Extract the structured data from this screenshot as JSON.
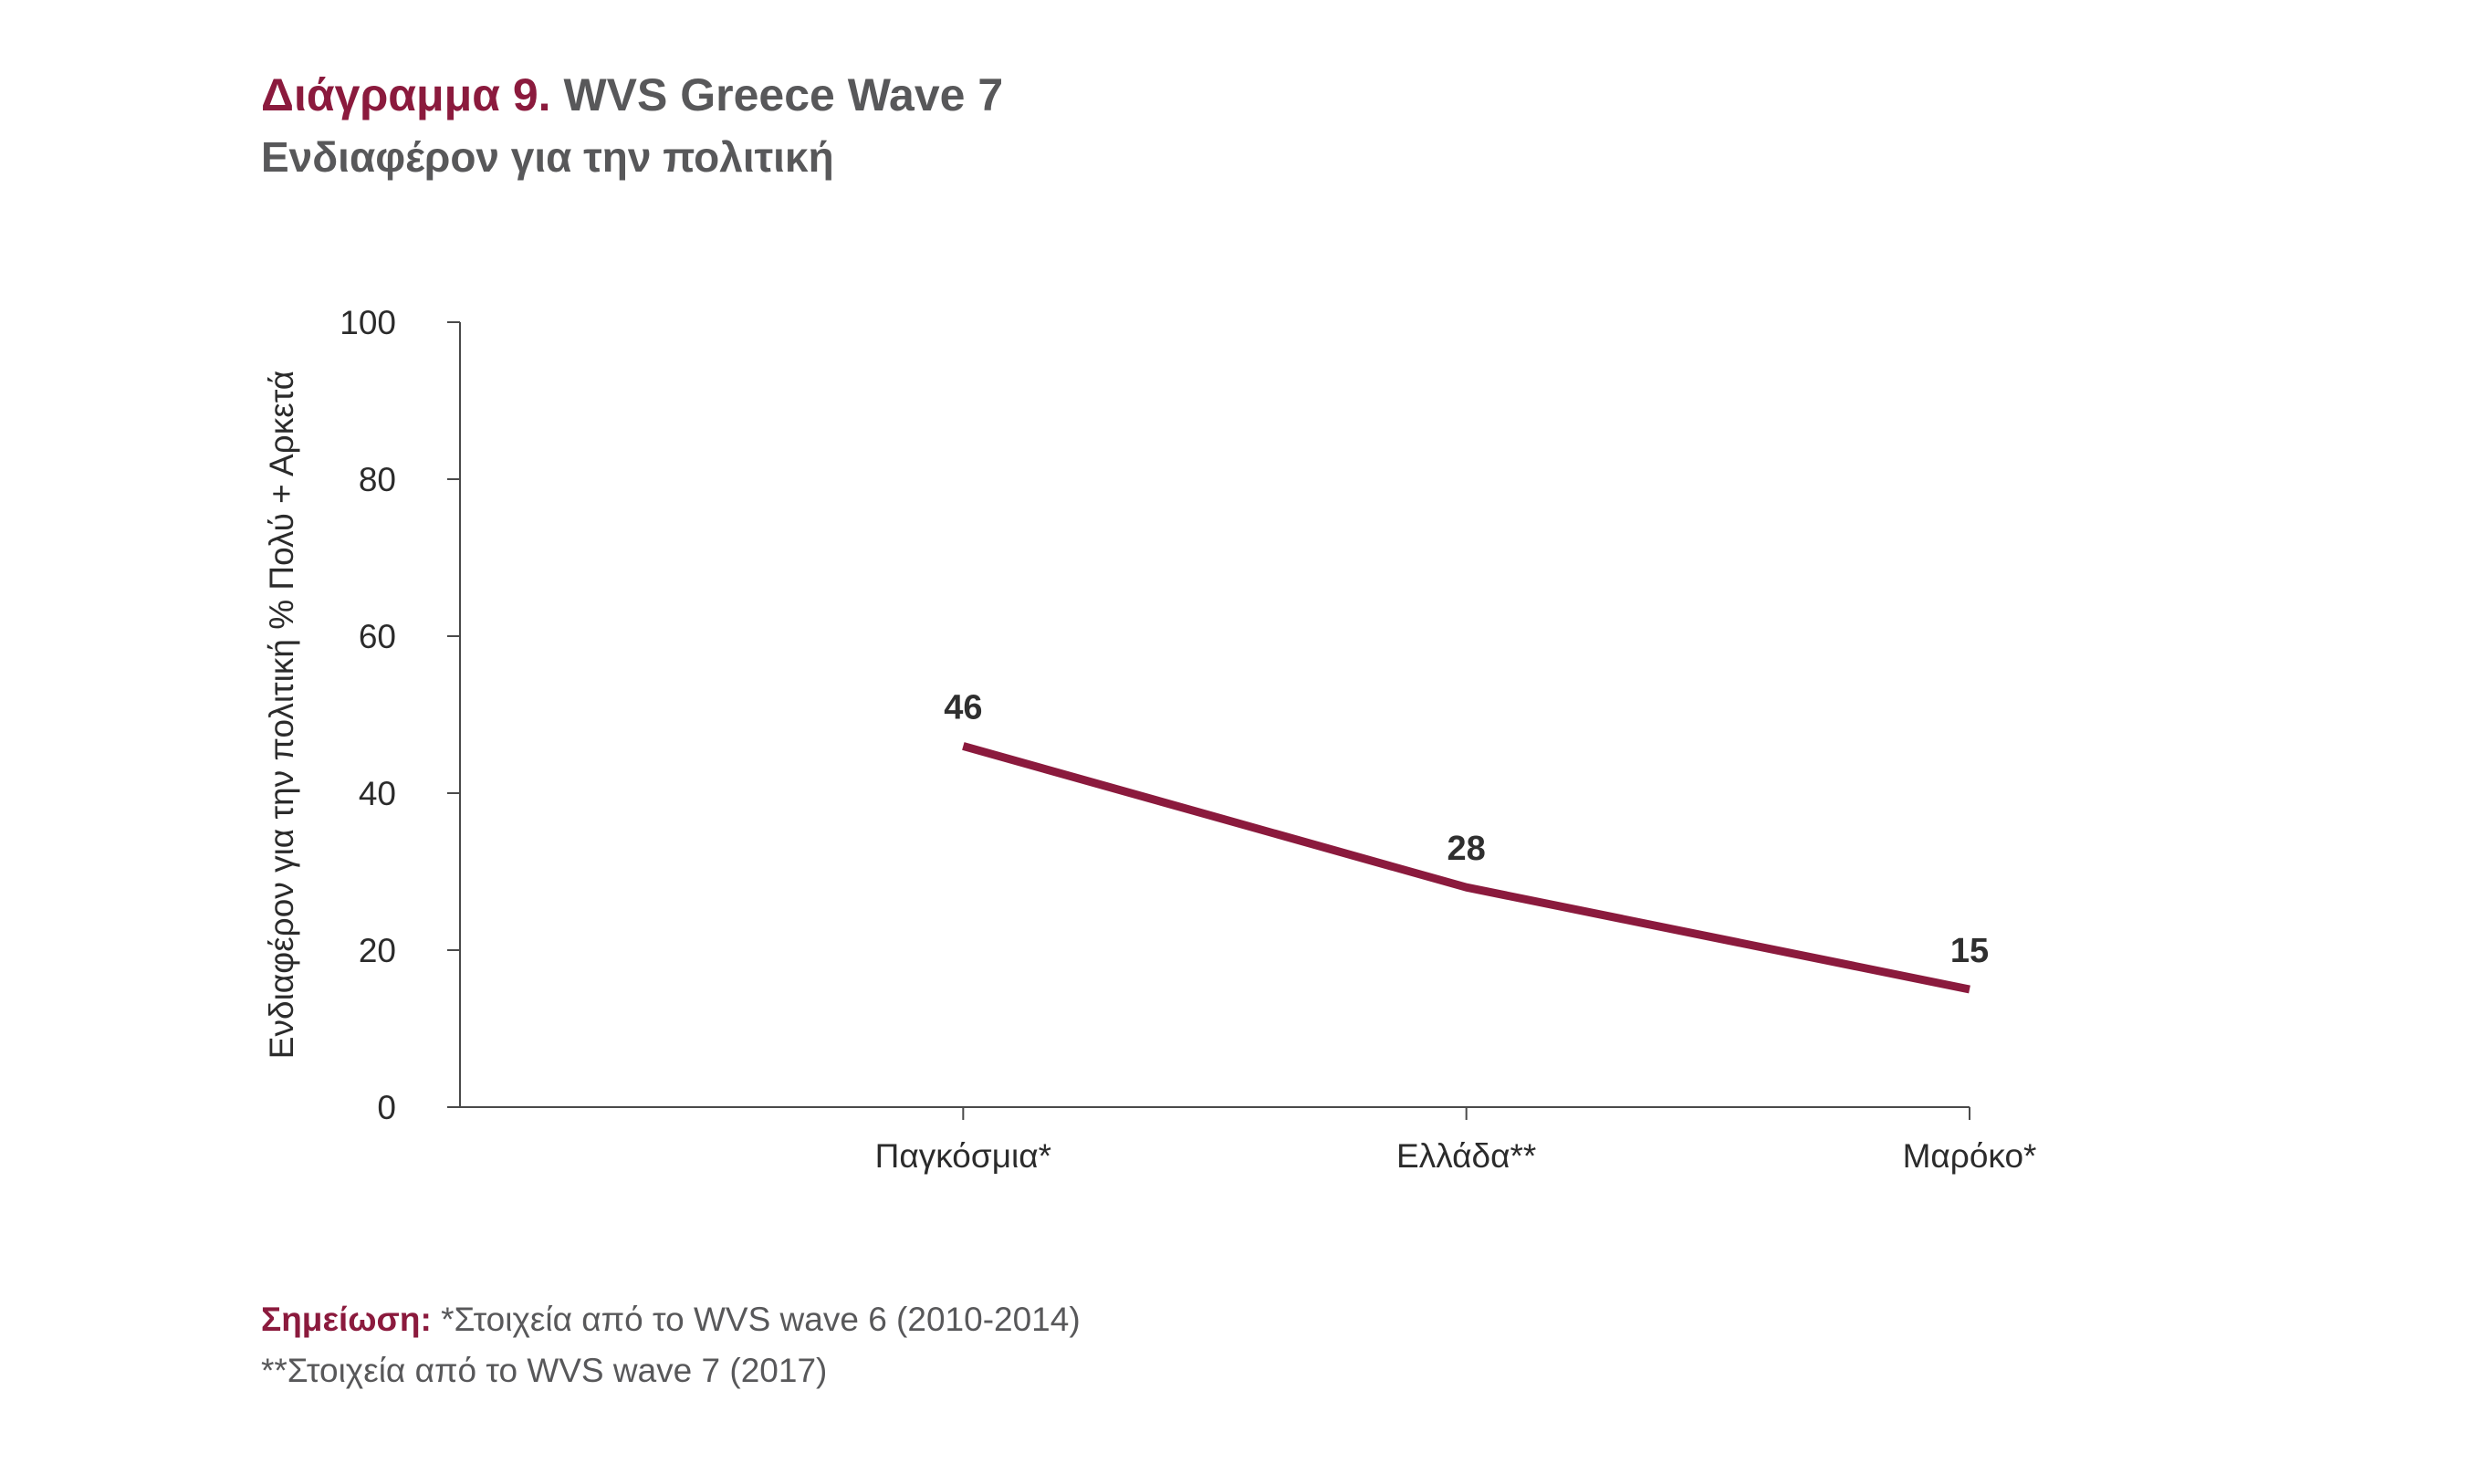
{
  "header": {
    "title_prefix": "Διάγραμμα 9.",
    "title_main": "WVS Greece Wave 7",
    "subtitle": "Ενδιαφέρον για την πολιτική"
  },
  "notes": {
    "label": "Σημείωση:",
    "line1": "*Στοιχεία από το WVS wave 6 (2010-2014)",
    "line2": "**Στοιχεία από το WVS wave 7 (2017)"
  },
  "colors": {
    "accent": "#8b1a3d",
    "text": "#58585a",
    "axis": "#4a4a4a"
  },
  "chart_data": {
    "type": "line",
    "categories": [
      "Παγκόσμια*",
      "Ελλάδα**",
      "Μαρόκο*"
    ],
    "series": [
      {
        "values": [
          46,
          28,
          15
        ]
      }
    ],
    "data_labels": [
      "46",
      "28",
      "15"
    ],
    "ylabel": "Ενδιαφέρον για την πολιτική % Πολύ + Αρκετά",
    "xlabel": "",
    "ylim": [
      0,
      100
    ],
    "yticks": [
      0,
      20,
      40,
      60,
      80,
      100
    ],
    "ytick_labels": [
      "0",
      "20",
      "40",
      "60",
      "80",
      "100"
    ],
    "grid": false,
    "legend": "none"
  }
}
